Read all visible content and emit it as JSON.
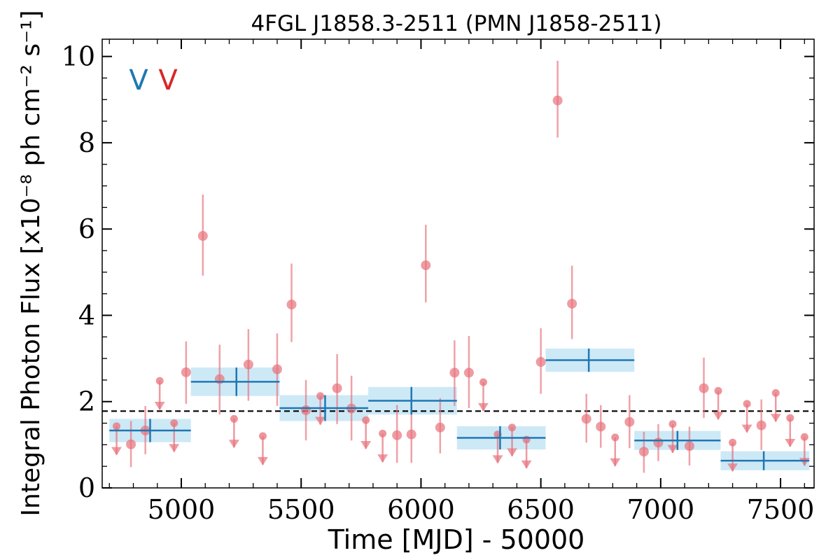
{
  "chart_data": {
    "type": "scatter",
    "title": "4FGL J1858.3-2511 (PMN J1858-2511)",
    "xlabel": "Time [MJD] - 50000",
    "ylabel": "Integral Photon Flux [x10⁻⁸ ph cm⁻² s⁻¹]",
    "xlim": [
      4670,
      7640
    ],
    "ylim": [
      0,
      10.4
    ],
    "xticks": [
      5000,
      5500,
      6000,
      6500,
      7000,
      7500
    ],
    "yticks": [
      0,
      2,
      4,
      6,
      8,
      10
    ],
    "legend_marks": [
      {
        "label": "V",
        "color": "#1f77b4"
      },
      {
        "label": "V",
        "color": "#d62728"
      }
    ],
    "reference_line": {
      "y": 1.78,
      "style": "dashed",
      "color": "#000000"
    },
    "colors": {
      "short_bin": "#e8707a",
      "long_bin": "#1f77b4",
      "long_bin_band": "#cde9f6"
    },
    "long_bins": [
      {
        "x_start": 4700,
        "x_end": 5040,
        "x_center": 4870,
        "y": 1.33,
        "y_err": 0.27
      },
      {
        "x_start": 5040,
        "x_end": 5410,
        "x_center": 5230,
        "y": 2.46,
        "y_err": 0.33
      },
      {
        "x_start": 5410,
        "x_end": 5780,
        "x_center": 5600,
        "y": 1.85,
        "y_err": 0.3
      },
      {
        "x_start": 5780,
        "x_end": 6150,
        "x_center": 5960,
        "y": 2.02,
        "y_err": 0.32
      },
      {
        "x_start": 6150,
        "x_end": 6520,
        "x_center": 6330,
        "y": 1.16,
        "y_err": 0.27
      },
      {
        "x_start": 6520,
        "x_end": 6890,
        "x_center": 6700,
        "y": 2.96,
        "y_err": 0.27
      },
      {
        "x_start": 6890,
        "x_end": 7250,
        "x_center": 7070,
        "y": 1.1,
        "y_err": 0.22
      },
      {
        "x_start": 7250,
        "x_end": 7620,
        "x_center": 7430,
        "y": 0.63,
        "y_err": 0.22
      }
    ],
    "short_bins": [
      {
        "x": 4730,
        "y": 1.43,
        "upper_limit": true
      },
      {
        "x": 4790,
        "y": 1.01,
        "y_lo": 0.48,
        "y_hi": 1.55
      },
      {
        "x": 4850,
        "y": 1.33,
        "y_lo": 0.78,
        "y_hi": 1.9
      },
      {
        "x": 4910,
        "y": 2.48,
        "upper_limit": true
      },
      {
        "x": 4970,
        "y": 1.5,
        "upper_limit": true
      },
      {
        "x": 5020,
        "y": 2.68,
        "y_lo": 1.95,
        "y_hi": 3.4
      },
      {
        "x": 5090,
        "y": 5.84,
        "y_lo": 4.92,
        "y_hi": 6.8
      },
      {
        "x": 5160,
        "y": 2.52,
        "y_lo": 1.7,
        "y_hi": 3.32
      },
      {
        "x": 5220,
        "y": 1.6,
        "upper_limit": true
      },
      {
        "x": 5280,
        "y": 2.86,
        "y_lo": 2.02,
        "y_hi": 3.68
      },
      {
        "x": 5340,
        "y": 1.2,
        "upper_limit": true
      },
      {
        "x": 5400,
        "y": 2.75,
        "y_lo": 1.9,
        "y_hi": 3.58
      },
      {
        "x": 5460,
        "y": 4.25,
        "y_lo": 3.38,
        "y_hi": 5.2
      },
      {
        "x": 5520,
        "y": 1.8,
        "y_lo": 1.1,
        "y_hi": 2.5
      },
      {
        "x": 5580,
        "y": 2.13,
        "upper_limit": true
      },
      {
        "x": 5650,
        "y": 2.31,
        "y_lo": 1.48,
        "y_hi": 3.1
      },
      {
        "x": 5710,
        "y": 1.84,
        "y_lo": 1.1,
        "y_hi": 2.6
      },
      {
        "x": 5770,
        "y": 1.57,
        "upper_limit": true
      },
      {
        "x": 5840,
        "y": 1.26,
        "upper_limit": true
      },
      {
        "x": 5900,
        "y": 1.22,
        "y_lo": 0.58,
        "y_hi": 1.92
      },
      {
        "x": 5960,
        "y": 1.24,
        "y_lo": 0.58,
        "y_hi": 1.98
      },
      {
        "x": 6020,
        "y": 5.16,
        "y_lo": 4.3,
        "y_hi": 6.1
      },
      {
        "x": 6080,
        "y": 1.4,
        "y_lo": 0.8,
        "y_hi": 2.08
      },
      {
        "x": 6140,
        "y": 2.67,
        "y_lo": 1.9,
        "y_hi": 3.42
      },
      {
        "x": 6200,
        "y": 2.67,
        "y_lo": 1.85,
        "y_hi": 3.52
      },
      {
        "x": 6260,
        "y": 2.45,
        "upper_limit": true
      },
      {
        "x": 6320,
        "y": 1.24,
        "upper_limit": true
      },
      {
        "x": 6380,
        "y": 1.4,
        "upper_limit": true
      },
      {
        "x": 6440,
        "y": 1.12,
        "upper_limit": true
      },
      {
        "x": 6500,
        "y": 2.92,
        "y_lo": 2.18,
        "y_hi": 3.7
      },
      {
        "x": 6570,
        "y": 8.98,
        "y_lo": 8.12,
        "y_hi": 9.9
      },
      {
        "x": 6630,
        "y": 4.27,
        "y_lo": 3.45,
        "y_hi": 5.15
      },
      {
        "x": 6690,
        "y": 1.6,
        "y_lo": 1.05,
        "y_hi": 2.18
      },
      {
        "x": 6750,
        "y": 1.42,
        "y_lo": 0.93,
        "y_hi": 1.92
      },
      {
        "x": 6810,
        "y": 1.17,
        "upper_limit": true
      },
      {
        "x": 6870,
        "y": 1.53,
        "y_lo": 0.92,
        "y_hi": 2.15
      },
      {
        "x": 6930,
        "y": 0.84,
        "y_lo": 0.35,
        "y_hi": 1.3
      },
      {
        "x": 6990,
        "y": 1.05,
        "y_lo": 0.62,
        "y_hi": 1.48
      },
      {
        "x": 7050,
        "y": 1.48,
        "upper_limit": true
      },
      {
        "x": 7120,
        "y": 0.97,
        "y_lo": 0.52,
        "y_hi": 1.42
      },
      {
        "x": 7180,
        "y": 2.31,
        "y_lo": 1.62,
        "y_hi": 3.02
      },
      {
        "x": 7240,
        "y": 2.25,
        "upper_limit": true
      },
      {
        "x": 7300,
        "y": 1.05,
        "upper_limit": true
      },
      {
        "x": 7360,
        "y": 1.95,
        "upper_limit": true
      },
      {
        "x": 7420,
        "y": 1.45,
        "y_lo": 0.88,
        "y_hi": 2.05
      },
      {
        "x": 7480,
        "y": 2.2,
        "upper_limit": true
      },
      {
        "x": 7540,
        "y": 1.62,
        "upper_limit": true
      },
      {
        "x": 7600,
        "y": 1.18,
        "upper_limit": true
      }
    ]
  }
}
